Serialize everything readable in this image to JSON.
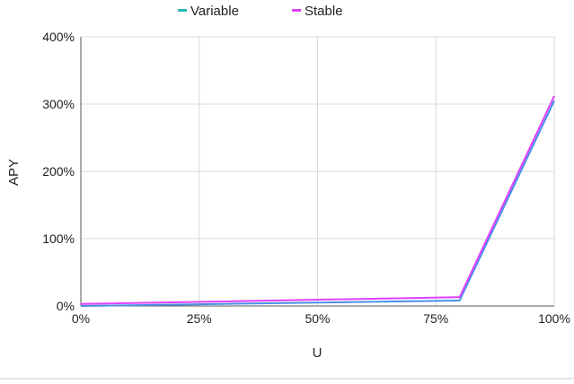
{
  "chart_data": {
    "type": "line",
    "title": "",
    "xlabel": "U",
    "ylabel": "APY",
    "x": [
      0,
      80,
      100
    ],
    "xlim": [
      0,
      100
    ],
    "ylim": [
      0,
      400
    ],
    "x_ticks": [
      0,
      25,
      50,
      75,
      100
    ],
    "x_tick_labels": [
      "0%",
      "25%",
      "50%",
      "75%",
      "100%"
    ],
    "y_ticks": [
      0,
      100,
      200,
      300,
      400
    ],
    "y_tick_labels": [
      "0%",
      "100%",
      "200%",
      "300%",
      "400%"
    ],
    "grid": true,
    "legend_position": "top",
    "series": [
      {
        "name": "Variable",
        "values": [
          0,
          8,
          305
        ],
        "color": "#2bb5b0",
        "line_color": "#4a8fe8"
      },
      {
        "name": "Stable",
        "values": [
          3,
          13,
          312
        ],
        "color": "#e040fb",
        "line_color": "#e040fb"
      }
    ]
  }
}
